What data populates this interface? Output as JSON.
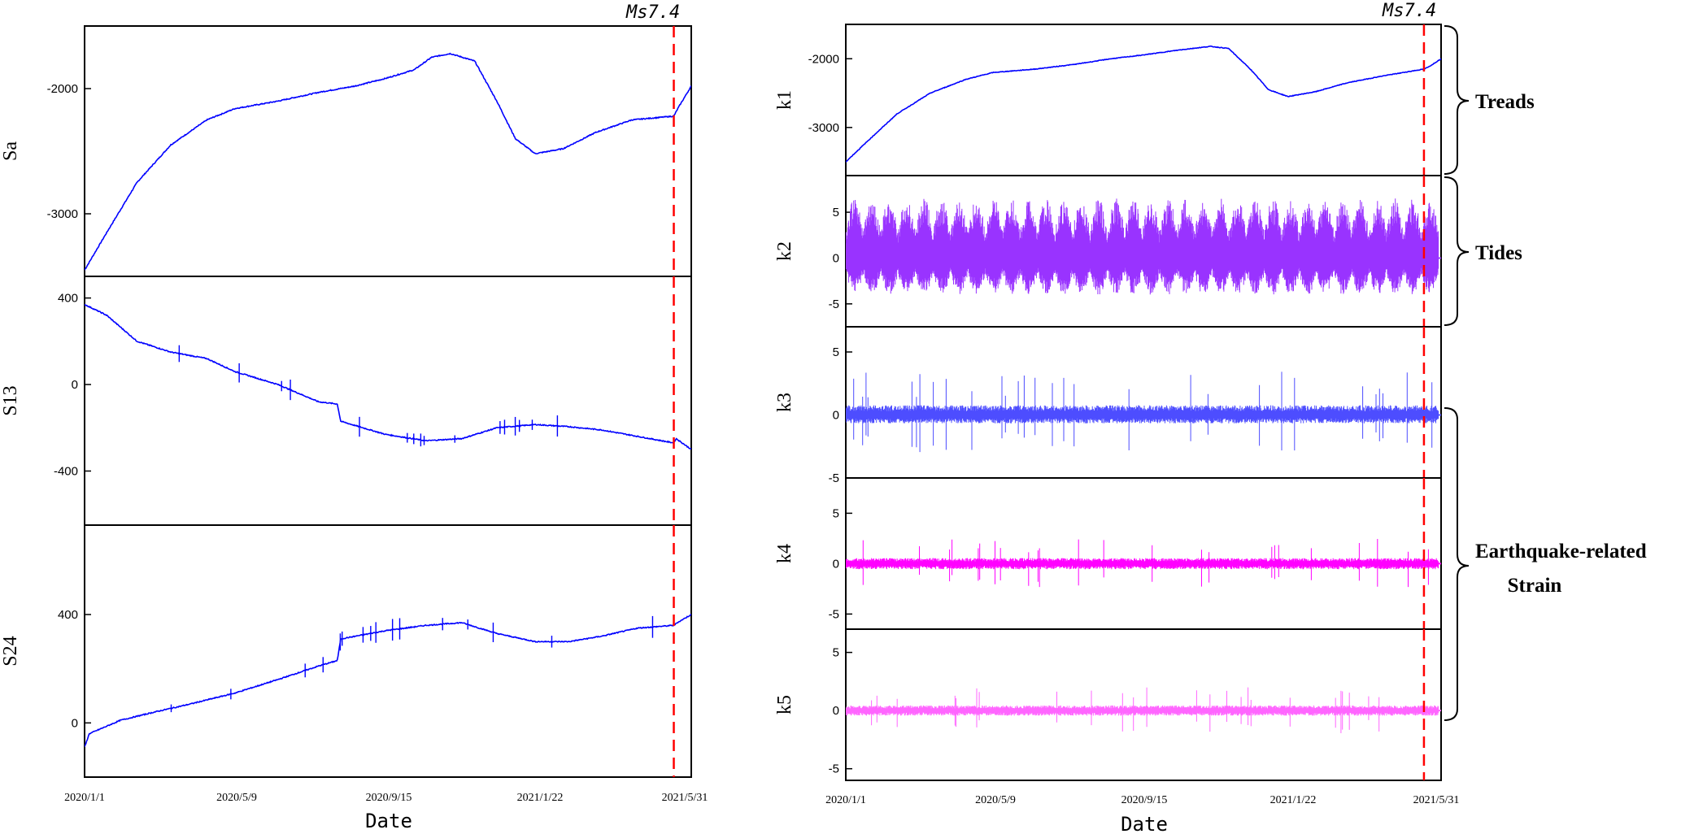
{
  "figure": {
    "left": {
      "x_ticks": [
        "2020/1/1",
        "2020/5/9",
        "2020/9/15",
        "2021/1/22",
        "2021/5/31"
      ],
      "x_title": "Date",
      "event_label": "Ms7.4"
    },
    "right": {
      "x_ticks": [
        "2020/1/1",
        "2020/5/9",
        "2020/9/15",
        "2021/1/22",
        "2021/5/31"
      ],
      "x_title": "Date",
      "event_label": "Ms7.4"
    },
    "groups": [
      {
        "label": "Treads"
      },
      {
        "label": "Tides"
      },
      {
        "label": "Earthquake-related",
        "label2": "Strain"
      }
    ]
  },
  "chart_data": [
    {
      "type": "line",
      "side": "left",
      "ylabel": "Sa",
      "xlim": [
        "2020/1/1",
        "2021/6/5"
      ],
      "ylim": [
        -3500,
        -1500
      ],
      "yticks": [
        -3000,
        -2000
      ],
      "color": "#0000ff",
      "event_date": "2021/5/21",
      "series": [
        {
          "x": [
            "2020/1/1",
            "2020/1/20",
            "2020/2/15",
            "2020/3/15",
            "2020/4/15",
            "2020/5/9",
            "2020/6/15",
            "2020/7/20",
            "2020/8/20",
            "2020/9/15",
            "2020/10/10",
            "2020/10/25",
            "2020/11/10",
            "2020/12/1",
            "2020/12/20",
            "2021/1/5",
            "2021/1/22",
            "2021/2/15",
            "2021/3/15",
            "2021/4/15",
            "2021/5/21",
            "2021/5/25",
            "2021/6/5"
          ],
          "y": [
            -3450,
            -3150,
            -2750,
            -2450,
            -2250,
            -2160,
            -2100,
            -2030,
            -1980,
            -1920,
            -1850,
            -1750,
            -1720,
            -1780,
            -2100,
            -2400,
            -2520,
            -2480,
            -2350,
            -2250,
            -2220,
            -2150,
            -1980
          ]
        }
      ]
    },
    {
      "type": "line",
      "side": "left",
      "ylabel": "S13",
      "xlim": [
        "2020/1/1",
        "2021/6/5"
      ],
      "ylim": [
        -650,
        500
      ],
      "yticks": [
        -400,
        0,
        400
      ],
      "color": "#0000ff",
      "event_date": "2021/5/21",
      "series": [
        {
          "x": [
            "2020/1/1",
            "2020/1/20",
            "2020/2/15",
            "2020/3/15",
            "2020/4/15",
            "2020/5/9",
            "2020/6/15",
            "2020/7/20",
            "2020/8/5",
            "2020/8/8",
            "2020/9/15",
            "2020/10/20",
            "2020/11/20",
            "2020/12/20",
            "2021/1/22",
            "2021/2/20",
            "2021/3/20",
            "2021/4/20",
            "2021/5/21",
            "2021/5/23",
            "2021/6/5"
          ],
          "y": [
            370,
            320,
            200,
            150,
            120,
            60,
            0,
            -80,
            -90,
            -170,
            -230,
            -260,
            -250,
            -200,
            -185,
            -195,
            -210,
            -240,
            -270,
            -250,
            -300
          ]
        }
      ]
    },
    {
      "type": "line",
      "side": "left",
      "ylabel": "S24",
      "xlim": [
        "2020/1/1",
        "2021/6/5"
      ],
      "ylim": [
        -200,
        730
      ],
      "yticks": [
        0,
        400
      ],
      "color": "#0000ff",
      "event_date": "2021/5/21",
      "series": [
        {
          "x": [
            "2020/1/1",
            "2020/1/5",
            "2020/2/1",
            "2020/3/1",
            "2020/4/1",
            "2020/5/9",
            "2020/6/15",
            "2020/7/20",
            "2020/8/5",
            "2020/8/8",
            "2020/9/15",
            "2020/10/20",
            "2020/11/20",
            "2020/12/20",
            "2021/1/22",
            "2021/2/20",
            "2021/3/20",
            "2021/4/20",
            "2021/5/21",
            "2021/5/24",
            "2021/6/5"
          ],
          "y": [
            -90,
            -40,
            10,
            40,
            70,
            110,
            160,
            210,
            230,
            310,
            340,
            360,
            370,
            330,
            300,
            300,
            320,
            350,
            360,
            370,
            400
          ]
        }
      ]
    },
    {
      "type": "line",
      "side": "right",
      "ylabel": "k1",
      "xlim": [
        "2020/1/1",
        "2021/6/5"
      ],
      "ylim": [
        -3700,
        -1500
      ],
      "yticks": [
        -3000,
        -2000
      ],
      "color": "#0000ff",
      "event_date": "2021/5/21",
      "series": [
        {
          "x": [
            "2020/1/1",
            "2020/1/20",
            "2020/2/15",
            "2020/3/15",
            "2020/4/15",
            "2020/5/9",
            "2020/6/15",
            "2020/7/20",
            "2020/8/20",
            "2020/9/15",
            "2020/10/20",
            "2020/11/15",
            "2020/12/1",
            "2020/12/20",
            "2021/1/5",
            "2021/1/22",
            "2021/2/15",
            "2021/3/15",
            "2021/4/15",
            "2021/5/21",
            "2021/5/25",
            "2021/6/5"
          ],
          "y": [
            -3500,
            -3200,
            -2800,
            -2500,
            -2300,
            -2200,
            -2150,
            -2080,
            -2000,
            -1950,
            -1870,
            -1820,
            -1850,
            -2150,
            -2450,
            -2550,
            -2480,
            -2350,
            -2250,
            -2150,
            -2120,
            -2000
          ]
        }
      ]
    },
    {
      "type": "line",
      "side": "right",
      "ylabel": "k2",
      "xlim": [
        "2020/1/1",
        "2021/6/5"
      ],
      "ylim": [
        -7.5,
        9
      ],
      "yticks": [
        -5,
        0,
        5
      ],
      "color": "#9933ff",
      "event_date": "2021/5/21",
      "style": "tidal",
      "series": [
        {
          "amplitude_range": [
            -4,
            6.5
          ]
        }
      ]
    },
    {
      "type": "line",
      "side": "right",
      "ylabel": "k3",
      "xlim": [
        "2020/1/1",
        "2021/6/5"
      ],
      "ylim": [
        -5,
        7
      ],
      "yticks": [
        -5,
        0,
        5
      ],
      "color": "#4d4dff",
      "event_date": "2021/5/21",
      "style": "noise",
      "series": [
        {
          "amplitude_range": [
            -3,
            3.5
          ]
        }
      ]
    },
    {
      "type": "line",
      "side": "right",
      "ylabel": "k4",
      "xlim": [
        "2020/1/1",
        "2021/6/5"
      ],
      "ylim": [
        -6.5,
        8.5
      ],
      "yticks": [
        -5,
        0,
        5
      ],
      "color": "#ff00ff",
      "event_date": "2021/5/21",
      "style": "noise",
      "series": [
        {
          "amplitude_range": [
            -2.5,
            2.5
          ]
        }
      ]
    },
    {
      "type": "line",
      "side": "right",
      "ylabel": "k5",
      "xlim": [
        "2020/1/1",
        "2021/6/5"
      ],
      "ylim": [
        -6,
        7
      ],
      "yticks": [
        -5,
        0,
        5
      ],
      "color": "#ff66ff",
      "event_date": "2021/5/21",
      "style": "noise",
      "series": [
        {
          "amplitude_range": [
            -2,
            2
          ]
        }
      ]
    }
  ]
}
